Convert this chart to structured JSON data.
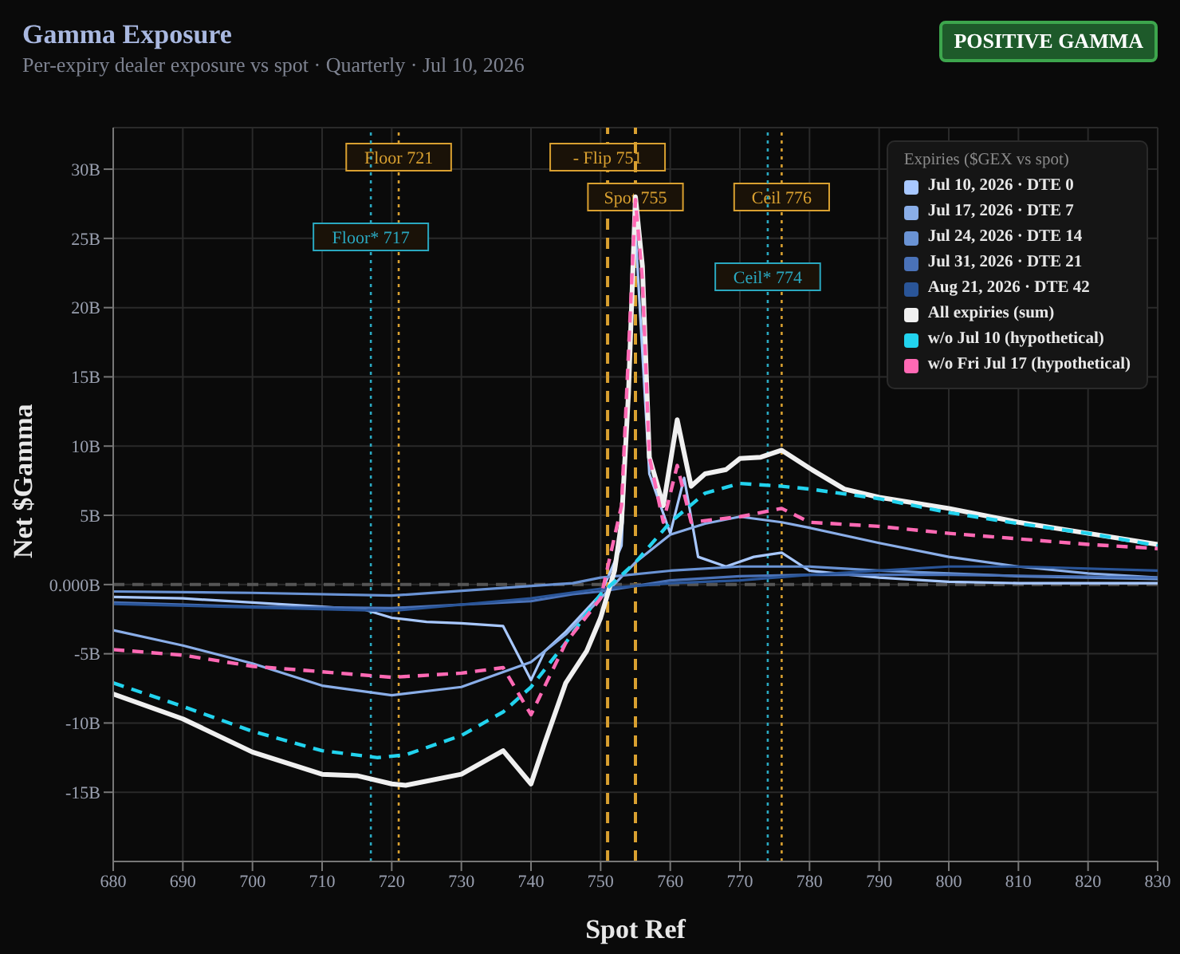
{
  "chart_data": {
    "type": "line",
    "title": "Gamma Exposure",
    "subtitle": "Per-expiry dealer exposure vs spot · Quarterly · Jul 10, 2026",
    "xlabel": "Spot Ref",
    "ylabel": "Net $Gamma",
    "legend_title": "Expiries ($GEX vs spot)",
    "annotations": [
      "POSITIVE GAMMA"
    ],
    "xlim": [
      680,
      830
    ],
    "xticks": [
      680,
      690,
      700,
      710,
      720,
      730,
      740,
      750,
      760,
      770,
      780,
      790,
      800,
      810,
      820,
      830
    ],
    "ylim": [
      -20,
      33
    ],
    "yticks": [
      {
        "value": -15,
        "label": "-15B"
      },
      {
        "value": -10,
        "label": "-10B"
      },
      {
        "value": -5,
        "label": "-5B"
      },
      {
        "value": 0,
        "label": "0.000B"
      },
      {
        "value": 5,
        "label": "5B"
      },
      {
        "value": 10,
        "label": "10B"
      },
      {
        "value": 15,
        "label": "15B"
      },
      {
        "value": 20,
        "label": "20B"
      },
      {
        "value": 25,
        "label": "25B"
      },
      {
        "value": 30,
        "label": "30B"
      }
    ],
    "grid": true,
    "legend": "top right",
    "marker": "none",
    "series": [
      {
        "name": "Jul 10, 2026 · DTE 0",
        "color": "#a8c8ff",
        "x": [
          680,
          690,
          700,
          710,
          716,
          720,
          725,
          730,
          736,
          740,
          742,
          745,
          750,
          753,
          755,
          757,
          760,
          762,
          764,
          768,
          772,
          776,
          780,
          790,
          800,
          810,
          830
        ],
        "values": [
          -0.9,
          -1.0,
          -1.3,
          -1.6,
          -1.8,
          -2.4,
          -2.7,
          -2.8,
          -3.0,
          -6.9,
          -4.8,
          -3.4,
          -0.7,
          2.8,
          25.5,
          8.0,
          3.7,
          7.7,
          2.0,
          1.3,
          2.0,
          2.3,
          1.0,
          0.5,
          0.2,
          0.1,
          0.1
        ]
      },
      {
        "name": "Jul 17, 2026 · DTE 7",
        "color": "#8aaee8",
        "x": [
          680,
          690,
          700,
          710,
          720,
          730,
          740,
          745,
          750,
          755,
          760,
          765,
          770,
          776,
          780,
          790,
          800,
          810,
          820,
          830
        ],
        "values": [
          -3.3,
          -4.4,
          -5.7,
          -7.3,
          -8.0,
          -7.4,
          -5.6,
          -3.6,
          -1.0,
          1.6,
          3.6,
          4.4,
          4.9,
          4.5,
          4.1,
          3.0,
          2.0,
          1.3,
          0.8,
          0.5
        ]
      },
      {
        "name": "Jul 24, 2026 · DTE 14",
        "color": "#6a93d4",
        "x": [
          680,
          700,
          720,
          740,
          746,
          750,
          760,
          770,
          780,
          790,
          800,
          810,
          820,
          830
        ],
        "values": [
          -0.5,
          -0.6,
          -0.8,
          -0.1,
          0.1,
          0.5,
          1.0,
          1.3,
          1.3,
          1.0,
          0.8,
          0.6,
          0.5,
          0.4
        ]
      },
      {
        "name": "Jul 31, 2026 · DTE 21",
        "color": "#4a72b8",
        "x": [
          680,
          700,
          720,
          740,
          746,
          750,
          760,
          770,
          780,
          800,
          830
        ],
        "values": [
          -1.3,
          -1.6,
          -1.7,
          -1.2,
          -0.7,
          -0.5,
          0.3,
          0.6,
          0.7,
          0.7,
          0.5
        ]
      },
      {
        "name": "Aug 21, 2026 · DTE 42",
        "color": "#2a5598",
        "x": [
          680,
          720,
          740,
          750,
          760,
          770,
          780,
          790,
          800,
          810,
          830
        ],
        "values": [
          -1.4,
          -1.9,
          -1.0,
          -0.3,
          0.1,
          0.3,
          0.7,
          1.0,
          1.3,
          1.3,
          1.0
        ]
      },
      {
        "name": "All expiries (sum)",
        "color": "#f0f0f0",
        "x": [
          680,
          690,
          700,
          710,
          715,
          720,
          722,
          730,
          736,
          740,
          742,
          745,
          748,
          750,
          752,
          753,
          754,
          755,
          756,
          757,
          759,
          761,
          763,
          765,
          768,
          770,
          773,
          776,
          780,
          785,
          790,
          800,
          810,
          820,
          830
        ],
        "values": [
          -7.9,
          -9.7,
          -12.1,
          -13.7,
          -13.8,
          -14.4,
          -14.5,
          -13.7,
          -12.0,
          -14.4,
          -11.4,
          -7.1,
          -4.8,
          -2.4,
          1.0,
          4.5,
          13.8,
          28.0,
          23.0,
          9.2,
          5.7,
          11.9,
          7.1,
          8.0,
          8.3,
          9.1,
          9.2,
          9.7,
          8.4,
          6.9,
          6.3,
          5.5,
          4.5,
          3.7,
          2.9
        ]
      },
      {
        "name": "w/o Jul 10 (hypothetical)",
        "color": "#22d3ee",
        "line_style": "dashed",
        "x": [
          680,
          690,
          700,
          710,
          718,
          722,
          730,
          736,
          740,
          745,
          750,
          755,
          760,
          765,
          770,
          776,
          780,
          790,
          800,
          810,
          820,
          830
        ],
        "values": [
          -7.1,
          -8.8,
          -10.6,
          -12.0,
          -12.5,
          -12.3,
          -10.9,
          -9.2,
          -7.4,
          -4.2,
          -0.7,
          1.6,
          4.5,
          6.6,
          7.3,
          7.1,
          6.9,
          6.2,
          5.2,
          4.4,
          3.7,
          2.8
        ]
      },
      {
        "name": "w/o Fri Jul 17 (hypothetical)",
        "color": "#ff69b4",
        "line_style": "dashed",
        "x": [
          680,
          690,
          700,
          710,
          720,
          730,
          736,
          740,
          745,
          750,
          753,
          755,
          756,
          757,
          759,
          761,
          763,
          770,
          776,
          780,
          790,
          800,
          810,
          820,
          830
        ],
        "values": [
          -4.7,
          -5.1,
          -5.9,
          -6.3,
          -6.7,
          -6.4,
          -6.0,
          -9.4,
          -4.2,
          -1.0,
          5.7,
          27.8,
          22.0,
          9.2,
          4.5,
          8.6,
          4.5,
          4.9,
          5.5,
          4.5,
          4.2,
          3.7,
          3.3,
          2.9,
          2.6
        ]
      }
    ],
    "ref_lines": [
      {
        "axis": "x",
        "value": 721,
        "label": "Floor 721",
        "color": "#d9a030",
        "line_style": "dotted"
      },
      {
        "axis": "x",
        "value": 751,
        "label": "- Flip 751",
        "color": "#d9a030",
        "line_style": "dashed"
      },
      {
        "axis": "x",
        "value": 755,
        "label": "Spot 755",
        "color": "#d9a030",
        "line_style": "dashed"
      },
      {
        "axis": "x",
        "value": 776,
        "label": "Ceil 776",
        "color": "#d9a030",
        "line_style": "dotted"
      },
      {
        "axis": "x",
        "value": 717,
        "label": "Floor* 717",
        "color": "#2aa8c0",
        "line_style": "dotted"
      },
      {
        "axis": "x",
        "value": 774,
        "label": "Ceil* 774",
        "color": "#2aa8c0",
        "line_style": "dotted"
      },
      {
        "axis": "y",
        "value": 0,
        "color": "#555555",
        "line_style": "dashed"
      }
    ]
  }
}
